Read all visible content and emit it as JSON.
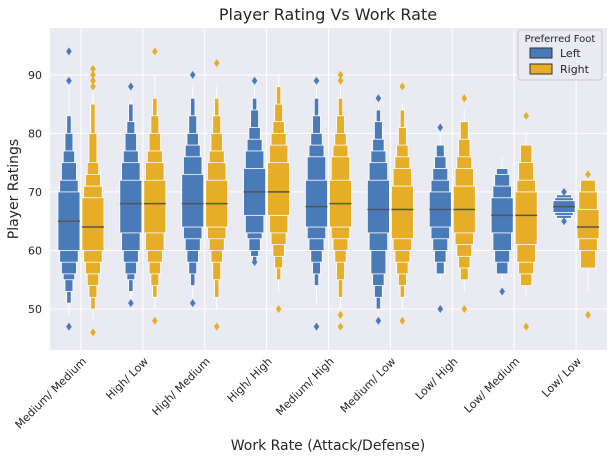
{
  "chart_data": {
    "type": "boxen",
    "title": "Player Rating Vs Work Rate",
    "xlabel": "Work Rate (Attack/Defense)",
    "ylabel": "Player Ratings",
    "ylim": [
      43,
      98
    ],
    "yticks": [
      50,
      60,
      70,
      80,
      90
    ],
    "grid": true,
    "legend": {
      "title": "Preferred Foot",
      "position": "top-right",
      "entries": [
        "Left",
        "Right"
      ]
    },
    "colors": {
      "Left": "#4a7ab8",
      "Right": "#e6ad26",
      "background": "#eaeaf2",
      "grid": "#ffffff",
      "median": "#555555"
    },
    "categories": [
      "Medium/ Medium",
      "High/ Low",
      "High/ Medium",
      "High/ High",
      "Medium/ High",
      "Medium/ Low",
      "Low/ High",
      "Low/ Medium",
      "Low/ Low"
    ],
    "series": [
      {
        "name": "Left",
        "boxes": [
          {
            "median": 65,
            "levels": [
              [
                60,
                70
              ],
              [
                58,
                72
              ],
              [
                56,
                75
              ],
              [
                55,
                77
              ],
              [
                53,
                80
              ],
              [
                51,
                83
              ]
            ],
            "whisker": [
              49,
              89
            ],
            "outliers": [
              47,
              89,
              94
            ]
          },
          {
            "median": 68,
            "levels": [
              [
                63,
                72
              ],
              [
                60,
                75
              ],
              [
                58,
                77
              ],
              [
                56,
                80
              ],
              [
                55,
                82
              ],
              [
                53,
                85
              ]
            ],
            "whisker": [
              51,
              86
            ],
            "outliers": [
              51,
              88
            ]
          },
          {
            "median": 68,
            "levels": [
              [
                64,
                73
              ],
              [
                62,
                76
              ],
              [
                60,
                78
              ],
              [
                58,
                80
              ],
              [
                56,
                83
              ],
              [
                54,
                86
              ]
            ],
            "whisker": [
              52,
              88
            ],
            "outliers": [
              51,
              90
            ]
          },
          {
            "median": 70,
            "levels": [
              [
                66,
                74
              ],
              [
                63,
                77
              ],
              [
                62,
                79
              ],
              [
                60,
                81
              ],
              [
                59,
                84
              ],
              [
                58,
                86
              ]
            ],
            "whisker": [
              58,
              88
            ],
            "outliers": [
              58,
              89
            ]
          },
          {
            "median": 67.5,
            "levels": [
              [
                64,
                72
              ],
              [
                62,
                76
              ],
              [
                60,
                78
              ],
              [
                58,
                80
              ],
              [
                56,
                83
              ],
              [
                54,
                86
              ]
            ],
            "whisker": [
              51,
              88
            ],
            "outliers": [
              47,
              89
            ]
          },
          {
            "median": 67,
            "levels": [
              [
                63,
                72
              ],
              [
                60,
                75
              ],
              [
                56,
                77
              ],
              [
                54,
                79
              ],
              [
                52,
                82
              ],
              [
                50,
                84
              ]
            ],
            "whisker": [
              49,
              85
            ],
            "outliers": [
              48,
              86
            ]
          },
          {
            "median": 67,
            "levels": [
              [
                64,
                70
              ],
              [
                62,
                72
              ],
              [
                60,
                74
              ],
              [
                58,
                76
              ],
              [
                56,
                78
              ]
            ],
            "whisker": [
              55,
              80
            ],
            "outliers": [
              50,
              81
            ]
          },
          {
            "median": 66,
            "levels": [
              [
                63,
                69
              ],
              [
                60,
                71
              ],
              [
                58,
                73
              ],
              [
                56,
                74
              ]
            ],
            "whisker": [
              55,
              76
            ],
            "outliers": [
              53
            ]
          },
          {
            "median": 67.5,
            "levels": [
              [
                66.5,
                68.5
              ],
              [
                66,
                69
              ],
              [
                65.5,
                69.5
              ]
            ],
            "whisker": [
              65,
              70
            ],
            "outliers": [
              65,
              70
            ]
          }
        ]
      },
      {
        "name": "Right",
        "boxes": [
          {
            "median": 64,
            "levels": [
              [
                60,
                69
              ],
              [
                58,
                71
              ],
              [
                56,
                73
              ],
              [
                54,
                75
              ],
              [
                52,
                80
              ],
              [
                50,
                85
              ]
            ],
            "whisker": [
              48,
              88
            ],
            "outliers": [
              46,
              88,
              89,
              90,
              91
            ]
          },
          {
            "median": 68,
            "levels": [
              [
                63,
                72
              ],
              [
                60,
                75
              ],
              [
                58,
                77
              ],
              [
                56,
                80
              ],
              [
                54,
                83
              ],
              [
                52,
                86
              ]
            ],
            "whisker": [
              50,
              90
            ],
            "outliers": [
              48,
              94
            ]
          },
          {
            "median": 68,
            "levels": [
              [
                64,
                72
              ],
              [
                62,
                75
              ],
              [
                60,
                77
              ],
              [
                58,
                80
              ],
              [
                55,
                83
              ],
              [
                52,
                86
              ]
            ],
            "whisker": [
              50,
              88
            ],
            "outliers": [
              47,
              92
            ]
          },
          {
            "median": 70,
            "levels": [
              [
                66,
                75
              ],
              [
                63,
                78
              ],
              [
                61,
                80
              ],
              [
                59,
                82
              ],
              [
                57,
                85
              ],
              [
                55,
                88
              ]
            ],
            "whisker": [
              53,
              90
            ],
            "outliers": [
              50
            ]
          },
          {
            "median": 68,
            "levels": [
              [
                64,
                72
              ],
              [
                62,
                76
              ],
              [
                60,
                78
              ],
              [
                58,
                80
              ],
              [
                55,
                83
              ],
              [
                52,
                86
              ]
            ],
            "whisker": [
              50,
              88
            ],
            "outliers": [
              47,
              49,
              89,
              90
            ]
          },
          {
            "median": 67,
            "levels": [
              [
                62,
                71
              ],
              [
                60,
                74
              ],
              [
                58,
                76
              ],
              [
                56,
                78
              ],
              [
                54,
                81
              ],
              [
                52,
                84
              ]
            ],
            "whisker": [
              50,
              85
            ],
            "outliers": [
              48,
              88
            ]
          },
          {
            "median": 67,
            "levels": [
              [
                63,
                71
              ],
              [
                61,
                74
              ],
              [
                59,
                76
              ],
              [
                57,
                79
              ],
              [
                55,
                82
              ]
            ],
            "whisker": [
              53,
              84
            ],
            "outliers": [
              50,
              86
            ]
          },
          {
            "median": 66,
            "levels": [
              [
                61,
                70
              ],
              [
                58,
                72
              ],
              [
                56,
                75
              ],
              [
                54,
                78
              ]
            ],
            "whisker": [
              52,
              80
            ],
            "outliers": [
              47,
              83
            ]
          },
          {
            "median": 64,
            "levels": [
              [
                62,
                67
              ],
              [
                60,
                70
              ],
              [
                57,
                72
              ]
            ],
            "whisker": [
              53,
              72
            ],
            "outliers": [
              49,
              73
            ]
          }
        ]
      }
    ]
  }
}
